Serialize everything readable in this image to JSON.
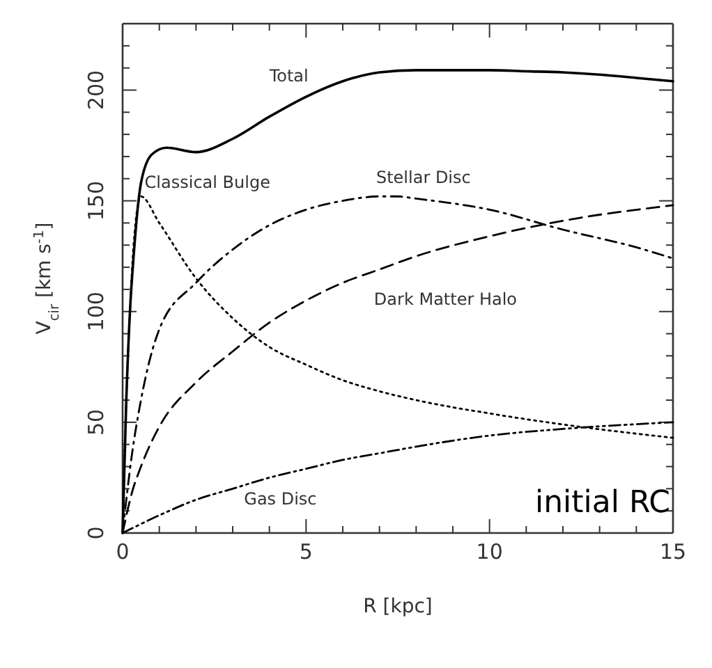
{
  "chart_data": {
    "type": "line",
    "xlabel": "R [kpc]",
    "ylabel": "V$_{cir}$ [km s$^{-1}$]",
    "xlim": [
      0,
      15
    ],
    "ylim": [
      0,
      230
    ],
    "xticks": [
      0,
      {
        "value": 1,
        "label": null
      },
      {
        "value": 2,
        "label": null
      },
      {
        "value": 3,
        "label": null
      },
      {
        "value": 4,
        "label": null
      },
      5,
      {
        "value": 6,
        "label": null
      },
      {
        "value": 7,
        "label": null
      },
      {
        "value": 8,
        "label": null
      },
      {
        "value": 9,
        "label": null
      },
      10,
      {
        "value": 11,
        "label": null
      },
      {
        "value": 12,
        "label": null
      },
      {
        "value": 13,
        "label": null
      },
      {
        "value": 14,
        "label": null
      },
      15
    ],
    "yticks": [
      0,
      {
        "value": 10,
        "label": null
      },
      {
        "value": 20,
        "label": null
      },
      {
        "value": 30,
        "label": null
      },
      {
        "value": 40,
        "label": null
      },
      50,
      {
        "value": 60,
        "label": null
      },
      {
        "value": 70,
        "label": null
      },
      {
        "value": 80,
        "label": null
      },
      {
        "value": 90,
        "label": null
      },
      100,
      {
        "value": 110,
        "label": null
      },
      {
        "value": 120,
        "label": null
      },
      {
        "value": 130,
        "label": null
      },
      {
        "value": 140,
        "label": null
      },
      150,
      {
        "value": 160,
        "label": null
      },
      {
        "value": 170,
        "label": null
      },
      {
        "value": 180,
        "label": null
      },
      {
        "value": 190,
        "label": null
      },
      200,
      {
        "value": 210,
        "label": null
      },
      {
        "value": 220,
        "label": null
      }
    ],
    "grid": false,
    "marker": "none",
    "series": [
      {
        "name": "Total",
        "color": "#000000",
        "line_style": "solid",
        "x": [
          0,
          0.1,
          0.2,
          0.3,
          0.5,
          0.8,
          1.2,
          2,
          3,
          4,
          5,
          6,
          7,
          8,
          9,
          10,
          11,
          12,
          13,
          14,
          15
        ],
        "values": [
          0,
          60,
          100,
          125,
          158,
          171,
          174,
          172,
          178,
          188,
          197,
          204,
          208,
          209,
          209,
          209,
          208.5,
          208,
          207,
          205.5,
          204
        ]
      },
      {
        "name": "Classical Bulge",
        "color": "#000000",
        "line_style": "dotted",
        "x": [
          0,
          0.1,
          0.2,
          0.3,
          0.5,
          1,
          2,
          3,
          4,
          5,
          6,
          7,
          8,
          10,
          12,
          15
        ],
        "values": [
          0,
          60,
          100,
          130,
          152,
          140,
          115,
          97,
          84,
          76,
          69,
          64,
          60,
          54,
          49,
          43
        ]
      },
      {
        "name": "Stellar Disc",
        "color": "#000000",
        "line_style": "dash-dot",
        "x": [
          0,
          0.25,
          0.5,
          1,
          2,
          3,
          4,
          5,
          6,
          7,
          7.5,
          8,
          10,
          12,
          14,
          15
        ],
        "values": [
          0,
          35,
          60,
          92,
          113,
          128,
          139,
          146,
          150,
          152,
          152,
          151,
          146,
          137,
          129,
          124
        ]
      },
      {
        "name": "Dark Matter Halo",
        "color": "#000000",
        "line_style": "dashed",
        "x": [
          0,
          0.25,
          0.5,
          1,
          2,
          3,
          4,
          5,
          6,
          7,
          8,
          10,
          12,
          15
        ],
        "values": [
          0,
          18,
          30,
          48,
          68,
          82,
          95,
          105,
          113,
          119,
          125,
          134,
          141,
          148
        ]
      },
      {
        "name": "Gas Disc",
        "color": "#000000",
        "line_style": "dash-dot-dot",
        "x": [
          0,
          1,
          2,
          3,
          4,
          5,
          6,
          7,
          8,
          10,
          12,
          15
        ],
        "values": [
          0,
          8,
          15,
          20,
          25,
          29,
          33,
          36,
          39,
          44,
          47,
          50
        ]
      }
    ],
    "annotations": [
      "initial RC"
    ]
  }
}
